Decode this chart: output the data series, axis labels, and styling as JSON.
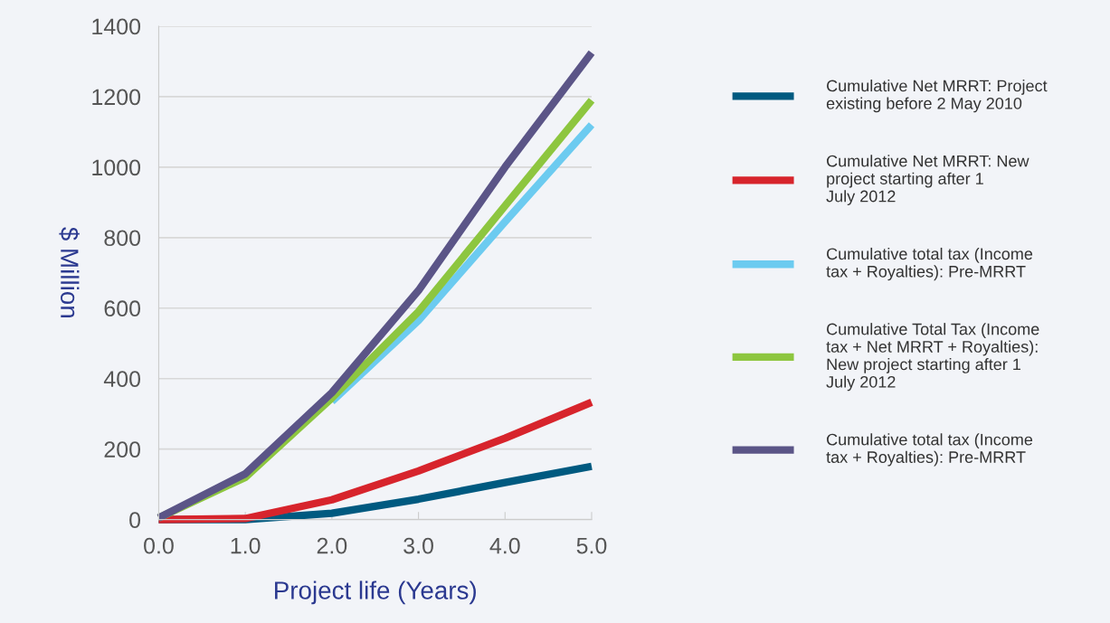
{
  "chart_data": {
    "type": "line",
    "xlabel": "Project life (Years)",
    "ylabel": "$ Million",
    "x": [
      0,
      1,
      2,
      3,
      4,
      5
    ],
    "series": [
      {
        "name": "Cumulative Net MRRT: Project existing before 2 May 2010",
        "color": "#005a80",
        "values": [
          0,
          0,
          18,
          58,
          105,
          151
        ]
      },
      {
        "name": "Cumulative Net MRRT: New project starting after 1 July 2012",
        "color": "#d7242c",
        "values": [
          0,
          3,
          56,
          138,
          231,
          333
        ]
      },
      {
        "name": "Cumulative total tax (Income tax + Royalties): Pre-MRRT",
        "color": "#6ccbf0",
        "values": [
          null,
          null,
          335,
          565,
          845,
          1120
        ]
      },
      {
        "name": "Cumulative Total Tax (Income tax + Net MRRT + Royalties): New project starting after 1 July 2012",
        "color": "#8dc63f",
        "values": [
          5,
          120,
          345,
          590,
          890,
          1190
        ]
      },
      {
        "name": "Cumulative total tax (Income tax + Royalties): Pre-MRRT",
        "color": "#5b5587",
        "values": [
          5,
          130,
          360,
          650,
          1000,
          1325
        ]
      }
    ],
    "xlim": [
      0,
      5
    ],
    "ylim": [
      0,
      1400
    ],
    "xticks": [
      {
        "value": 0,
        "label": "0.0"
      },
      {
        "value": 1,
        "label": "1.0"
      },
      {
        "value": 2,
        "label": "2.0"
      },
      {
        "value": 3,
        "label": "3.0"
      },
      {
        "value": 4,
        "label": "4.0"
      },
      {
        "value": 5,
        "label": "5.0"
      }
    ],
    "yticks": [
      0,
      200,
      400,
      600,
      800,
      1000,
      1200,
      1400
    ],
    "grid": "y",
    "legend": "right",
    "line_style": "solid"
  }
}
